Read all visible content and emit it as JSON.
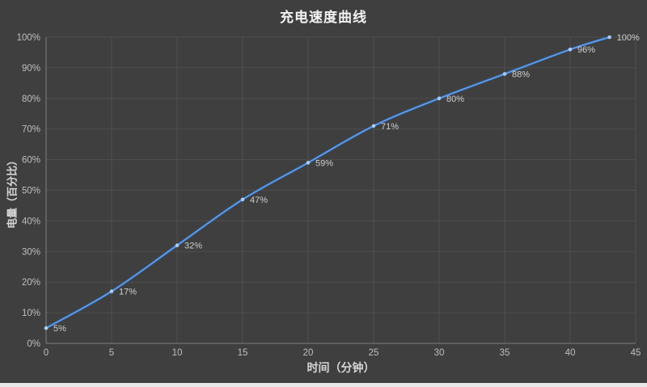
{
  "chart_data": {
    "type": "line",
    "title": "充电速度曲线",
    "xlabel": "时间（分钟）",
    "ylabel": "电量（百分比）",
    "x": [
      0,
      5,
      10,
      15,
      20,
      25,
      30,
      35,
      40,
      43
    ],
    "values": [
      5,
      17,
      32,
      47,
      59,
      71,
      80,
      88,
      96,
      100
    ],
    "data_labels": [
      "5%",
      "17%",
      "32%",
      "47%",
      "59%",
      "71%",
      "80%",
      "88%",
      "96%",
      "100%"
    ],
    "xlim": [
      0,
      45
    ],
    "ylim": [
      0,
      100
    ],
    "x_ticks": [
      {
        "v": 0,
        "label": "0"
      },
      {
        "v": 5,
        "label": "5"
      },
      {
        "v": 10,
        "label": "10"
      },
      {
        "v": 15,
        "label": "15"
      },
      {
        "v": 20,
        "label": "20"
      },
      {
        "v": 25,
        "label": "25"
      },
      {
        "v": 30,
        "label": "30"
      },
      {
        "v": 35,
        "label": "35"
      },
      {
        "v": 40,
        "label": "40"
      },
      {
        "v": 45,
        "label": "45"
      }
    ],
    "y_ticks": [
      {
        "v": 0,
        "label": "0%"
      },
      {
        "v": 10,
        "label": "10%"
      },
      {
        "v": 20,
        "label": "20%"
      },
      {
        "v": 30,
        "label": "30%"
      },
      {
        "v": 40,
        "label": "40%"
      },
      {
        "v": 50,
        "label": "50%"
      },
      {
        "v": 60,
        "label": "60%"
      },
      {
        "v": 70,
        "label": "70%"
      },
      {
        "v": 80,
        "label": "80%"
      },
      {
        "v": 90,
        "label": "90%"
      },
      {
        "v": 100,
        "label": "100%"
      }
    ],
    "grid": true,
    "smooth": true,
    "legend": "none"
  },
  "colors": {
    "background": "#3f3f3f",
    "grid": "#4f4f4f",
    "axis": "#7f7f7f",
    "line_outer": "#2e5c9e",
    "line_inner": "#6aa1e0",
    "marker": "#aacdf2",
    "tick_label": "#bfbfbf",
    "data_label": "#cfcfcf",
    "title": "#f2f2f2",
    "axis_title": "#d6d6d6",
    "bottom_strip": "#e8e8e8"
  }
}
